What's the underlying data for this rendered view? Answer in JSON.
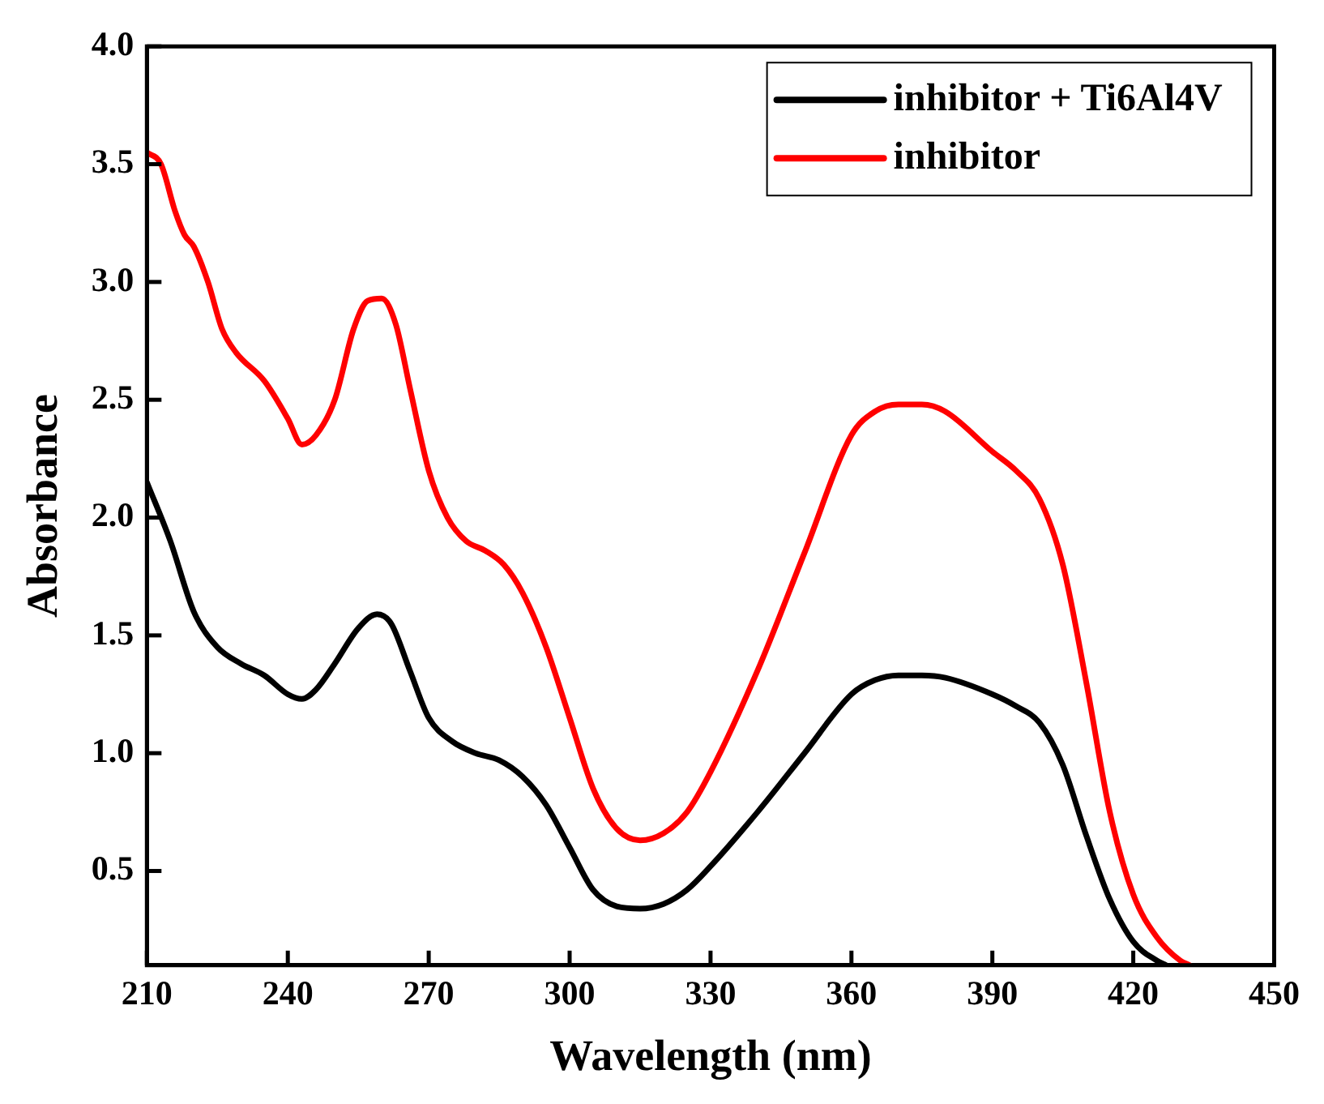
{
  "chart_data": {
    "type": "line",
    "xlabel": "Wavelength (nm)",
    "ylabel": "Absorbance",
    "xlim": [
      210,
      450
    ],
    "xticks": [
      210,
      240,
      270,
      300,
      330,
      360,
      390,
      420,
      450
    ],
    "ylim": [
      0.1,
      4.0
    ],
    "yticks": [
      0.5,
      {
        "value": 1,
        "label": "1.0"
      },
      1.5,
      {
        "value": 2,
        "label": "2.0"
      },
      2.5,
      {
        "value": 3,
        "label": "3.0"
      },
      3.5,
      {
        "value": 4,
        "label": "4.0"
      }
    ],
    "grid": false,
    "legend": "top right",
    "marker": "none",
    "line_style": "solid",
    "series": [
      {
        "name": "inhibitor + Ti6Al4V",
        "color": "#000000",
        "x": [
          210,
          215,
          220,
          225,
          230,
          235,
          240,
          243,
          246,
          250,
          255,
          259,
          262,
          266,
          270,
          275,
          280,
          285,
          290,
          295,
          300,
          305,
          310,
          315,
          320,
          325,
          330,
          340,
          350,
          360,
          365,
          370,
          375,
          380,
          390,
          395,
          400,
          405,
          410,
          415,
          420,
          425,
          427
        ],
        "values": [
          2.15,
          1.9,
          1.6,
          1.45,
          1.38,
          1.33,
          1.25,
          1.23,
          1.27,
          1.38,
          1.53,
          1.59,
          1.55,
          1.35,
          1.15,
          1.05,
          1.0,
          0.97,
          0.9,
          0.78,
          0.6,
          0.42,
          0.35,
          0.34,
          0.36,
          0.42,
          0.52,
          0.75,
          1.0,
          1.25,
          1.31,
          1.33,
          1.33,
          1.32,
          1.25,
          1.2,
          1.13,
          0.95,
          0.65,
          0.38,
          0.2,
          0.12,
          0.1
        ]
      },
      {
        "name": "inhibitor",
        "color": "#ff0000",
        "x": [
          210,
          213,
          216,
          218,
          220,
          223,
          226,
          229,
          235,
          240,
          243,
          246,
          250,
          254,
          257,
          260,
          263,
          266,
          270,
          274,
          278,
          282,
          286,
          290,
          295,
          300,
          305,
          310,
          315,
          320,
          325,
          330,
          340,
          350,
          360,
          365,
          370,
          375,
          380,
          390,
          395,
          400,
          405,
          410,
          415,
          420,
          425,
          430,
          432
        ],
        "values": [
          3.55,
          3.5,
          3.3,
          3.2,
          3.15,
          3.0,
          2.8,
          2.7,
          2.58,
          2.42,
          2.31,
          2.35,
          2.5,
          2.8,
          2.92,
          2.93,
          2.82,
          2.55,
          2.2,
          2.0,
          1.9,
          1.86,
          1.8,
          1.68,
          1.45,
          1.15,
          0.85,
          0.68,
          0.63,
          0.66,
          0.75,
          0.92,
          1.35,
          1.85,
          2.35,
          2.45,
          2.48,
          2.48,
          2.45,
          2.28,
          2.2,
          2.08,
          1.8,
          1.3,
          0.75,
          0.4,
          0.22,
          0.12,
          0.1
        ]
      }
    ]
  }
}
